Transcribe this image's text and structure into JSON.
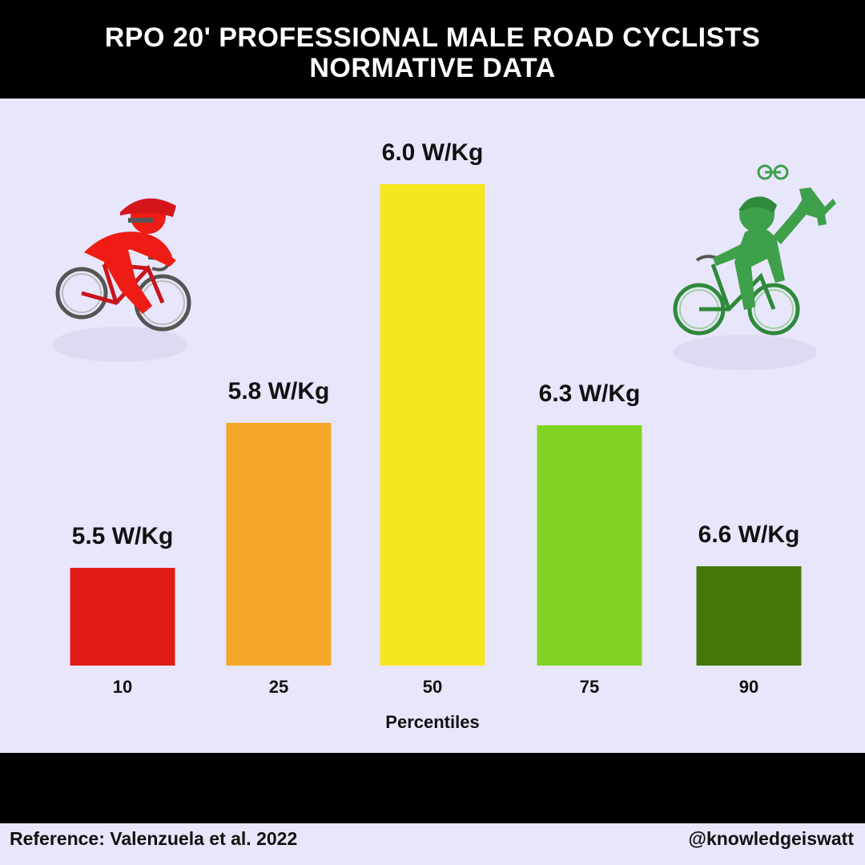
{
  "title_line1": "RPO 20' PROFESSIONAL MALE ROAD CYCLISTS",
  "title_line2": "NORMATIVE DATA",
  "footer": {
    "reference": "Reference: Valenzuela  et al. 2022",
    "handle": "@knowledgeiswatt"
  },
  "icons": {
    "left": "red-cyclist-icon",
    "right": "green-cyclist-trophy-icon"
  },
  "chart_data": {
    "type": "bar",
    "title": "RPO 20' PROFESSIONAL MALE ROAD CYCLISTS NORMATIVE DATA",
    "xlabel": "Percentiles",
    "ylabel": "",
    "categories": [
      "10",
      "25",
      "50",
      "75",
      "90"
    ],
    "values": [
      5.5,
      5.8,
      6.0,
      6.3,
      6.6
    ],
    "data_labels": [
      "5.5 W/Kg",
      "5.8 W/Kg",
      "6.0 W/Kg",
      "6.3 W/Kg",
      "6.6 W/Kg"
    ],
    "colors": [
      "#e01a14",
      "#f4a726",
      "#f6e622",
      "#80d323",
      "#44790a"
    ],
    "grid": false,
    "legend": "none"
  }
}
